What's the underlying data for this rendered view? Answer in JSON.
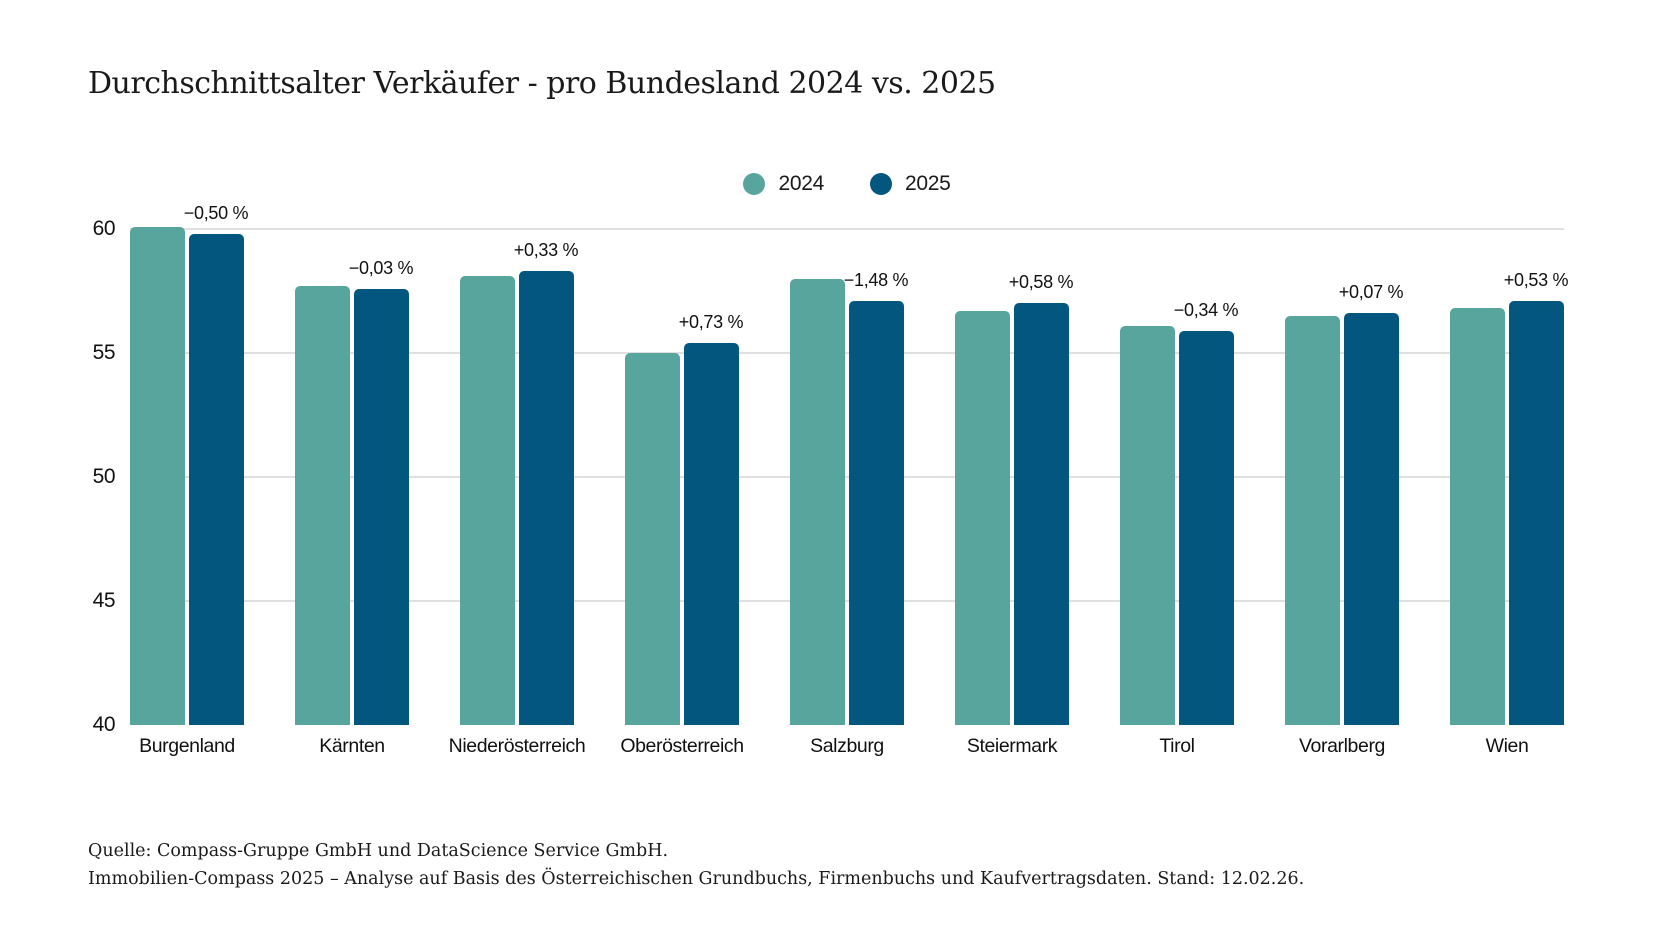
{
  "title": "Durchschnittsalter Verkäufer - pro Bundesland 2024 vs. 2025",
  "colors": {
    "series_2024": "#58A59E",
    "series_2025": "#03577E",
    "gridline": "#e0e0e0",
    "text": "#1a1a1a"
  },
  "legend": {
    "items": [
      {
        "label": "2024",
        "color": "#58A59E"
      },
      {
        "label": "2025",
        "color": "#03577E"
      }
    ]
  },
  "chart_data": {
    "type": "bar",
    "title": "Durchschnittsalter Verkäufer - pro Bundesland 2024 vs. 2025",
    "categories": [
      "Burgenland",
      "Kärnten",
      "Niederösterreich",
      "Oberösterreich",
      "Salzburg",
      "Steiermark",
      "Tirol",
      "Vorarlberg",
      "Wien"
    ],
    "series": [
      {
        "name": "2024",
        "color": "#58A59E",
        "values": [
          60.1,
          57.7,
          58.1,
          55.0,
          58.0,
          56.7,
          56.1,
          56.5,
          56.8
        ]
      },
      {
        "name": "2025",
        "color": "#03577E",
        "values": [
          59.8,
          57.6,
          58.3,
          55.4,
          57.1,
          57.0,
          55.9,
          56.6,
          57.1
        ]
      }
    ],
    "delta_labels": [
      "−0,50 %",
      "−0,03 %",
      "+0,33 %",
      "+0,73 %",
      "−1,48 %",
      "+0,58 %",
      "−0,34 %",
      "+0,07 %",
      "+0,53 %"
    ],
    "xlabel": "",
    "ylabel": "",
    "ylim": [
      40,
      60
    ],
    "yticks": [
      40,
      45,
      50,
      55,
      60
    ],
    "grid": "horizontal-only",
    "legend_position": "top-center"
  },
  "footer": {
    "line1": "Quelle: Compass-Gruppe GmbH und DataScience Service GmbH.",
    "line2": "Immobilien-Compass 2025 – Analyse auf Basis des Österreichischen Grundbuchs, Firmenbuchs und Kaufvertragsdaten. Stand: 12.02.26."
  }
}
